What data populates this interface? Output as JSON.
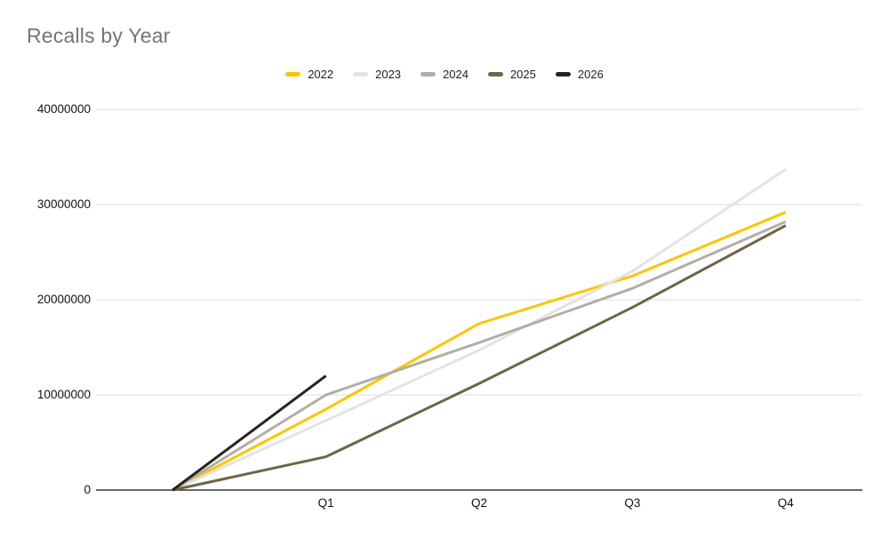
{
  "chart_data": {
    "type": "line",
    "title": "Recalls by Year",
    "categories": [
      "",
      "Q1",
      "Q2",
      "Q3",
      "Q4"
    ],
    "series": [
      {
        "name": "2022",
        "color": "#fdc500",
        "values": [
          0,
          8500000,
          17500000,
          22500000,
          29200000
        ]
      },
      {
        "name": "2023",
        "color": "#e3e3e3",
        "values": [
          0,
          7300000,
          14700000,
          23000000,
          33700000
        ]
      },
      {
        "name": "2024",
        "color": "#b0aea7",
        "values": [
          0,
          10000000,
          15500000,
          21200000,
          28200000
        ]
      },
      {
        "name": "2025",
        "color": "#6e6444",
        "values": [
          0,
          3500000,
          11200000,
          19200000,
          27800000
        ]
      },
      {
        "name": "2026",
        "color": "#26241d",
        "values": [
          0,
          12000000,
          null,
          null,
          null
        ]
      }
    ],
    "ylim": [
      0,
      40000000
    ],
    "y_ticks": [
      0,
      10000000,
      20000000,
      30000000,
      40000000
    ],
    "y_tick_labels": [
      "0",
      "10000000",
      "20000000",
      "30000000",
      "40000000"
    ],
    "x_tick_labels": [
      "Q1",
      "Q2",
      "Q3",
      "Q4"
    ],
    "grid": true,
    "legend_position": "top"
  },
  "colors": {
    "title": "#757575",
    "axis_label": "#111111",
    "legend_label": "#212121",
    "gridline": "#dcdcdc",
    "axis_line": "#333333",
    "background": "#ffffff"
  }
}
